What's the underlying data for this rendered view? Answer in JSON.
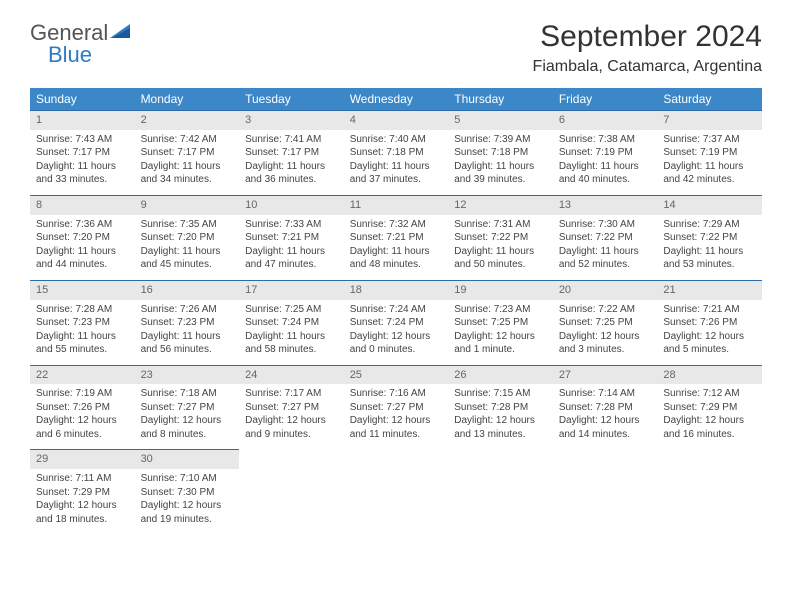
{
  "logo": {
    "word1": "General",
    "word2": "Blue"
  },
  "title": "September 2024",
  "location": "Fiambala, Catamarca, Argentina",
  "colors": {
    "header_bg": "#3b87c8",
    "header_text": "#ffffff",
    "daynum_bg": "#e8e8e8",
    "daynum_text": "#666666",
    "cell_border": "#2c6aa8",
    "body_text": "#444444",
    "logo_blue": "#2c7bc4"
  },
  "weekdays": [
    "Sunday",
    "Monday",
    "Tuesday",
    "Wednesday",
    "Thursday",
    "Friday",
    "Saturday"
  ],
  "weeks": [
    [
      {
        "d": "1",
        "sr": "Sunrise: 7:43 AM",
        "ss": "Sunset: 7:17 PM",
        "dl1": "Daylight: 11 hours",
        "dl2": "and 33 minutes."
      },
      {
        "d": "2",
        "sr": "Sunrise: 7:42 AM",
        "ss": "Sunset: 7:17 PM",
        "dl1": "Daylight: 11 hours",
        "dl2": "and 34 minutes."
      },
      {
        "d": "3",
        "sr": "Sunrise: 7:41 AM",
        "ss": "Sunset: 7:17 PM",
        "dl1": "Daylight: 11 hours",
        "dl2": "and 36 minutes."
      },
      {
        "d": "4",
        "sr": "Sunrise: 7:40 AM",
        "ss": "Sunset: 7:18 PM",
        "dl1": "Daylight: 11 hours",
        "dl2": "and 37 minutes."
      },
      {
        "d": "5",
        "sr": "Sunrise: 7:39 AM",
        "ss": "Sunset: 7:18 PM",
        "dl1": "Daylight: 11 hours",
        "dl2": "and 39 minutes."
      },
      {
        "d": "6",
        "sr": "Sunrise: 7:38 AM",
        "ss": "Sunset: 7:19 PM",
        "dl1": "Daylight: 11 hours",
        "dl2": "and 40 minutes."
      },
      {
        "d": "7",
        "sr": "Sunrise: 7:37 AM",
        "ss": "Sunset: 7:19 PM",
        "dl1": "Daylight: 11 hours",
        "dl2": "and 42 minutes."
      }
    ],
    [
      {
        "d": "8",
        "sr": "Sunrise: 7:36 AM",
        "ss": "Sunset: 7:20 PM",
        "dl1": "Daylight: 11 hours",
        "dl2": "and 44 minutes."
      },
      {
        "d": "9",
        "sr": "Sunrise: 7:35 AM",
        "ss": "Sunset: 7:20 PM",
        "dl1": "Daylight: 11 hours",
        "dl2": "and 45 minutes."
      },
      {
        "d": "10",
        "sr": "Sunrise: 7:33 AM",
        "ss": "Sunset: 7:21 PM",
        "dl1": "Daylight: 11 hours",
        "dl2": "and 47 minutes."
      },
      {
        "d": "11",
        "sr": "Sunrise: 7:32 AM",
        "ss": "Sunset: 7:21 PM",
        "dl1": "Daylight: 11 hours",
        "dl2": "and 48 minutes."
      },
      {
        "d": "12",
        "sr": "Sunrise: 7:31 AM",
        "ss": "Sunset: 7:22 PM",
        "dl1": "Daylight: 11 hours",
        "dl2": "and 50 minutes."
      },
      {
        "d": "13",
        "sr": "Sunrise: 7:30 AM",
        "ss": "Sunset: 7:22 PM",
        "dl1": "Daylight: 11 hours",
        "dl2": "and 52 minutes."
      },
      {
        "d": "14",
        "sr": "Sunrise: 7:29 AM",
        "ss": "Sunset: 7:22 PM",
        "dl1": "Daylight: 11 hours",
        "dl2": "and 53 minutes."
      }
    ],
    [
      {
        "d": "15",
        "sr": "Sunrise: 7:28 AM",
        "ss": "Sunset: 7:23 PM",
        "dl1": "Daylight: 11 hours",
        "dl2": "and 55 minutes."
      },
      {
        "d": "16",
        "sr": "Sunrise: 7:26 AM",
        "ss": "Sunset: 7:23 PM",
        "dl1": "Daylight: 11 hours",
        "dl2": "and 56 minutes."
      },
      {
        "d": "17",
        "sr": "Sunrise: 7:25 AM",
        "ss": "Sunset: 7:24 PM",
        "dl1": "Daylight: 11 hours",
        "dl2": "and 58 minutes."
      },
      {
        "d": "18",
        "sr": "Sunrise: 7:24 AM",
        "ss": "Sunset: 7:24 PM",
        "dl1": "Daylight: 12 hours",
        "dl2": "and 0 minutes."
      },
      {
        "d": "19",
        "sr": "Sunrise: 7:23 AM",
        "ss": "Sunset: 7:25 PM",
        "dl1": "Daylight: 12 hours",
        "dl2": "and 1 minute."
      },
      {
        "d": "20",
        "sr": "Sunrise: 7:22 AM",
        "ss": "Sunset: 7:25 PM",
        "dl1": "Daylight: 12 hours",
        "dl2": "and 3 minutes."
      },
      {
        "d": "21",
        "sr": "Sunrise: 7:21 AM",
        "ss": "Sunset: 7:26 PM",
        "dl1": "Daylight: 12 hours",
        "dl2": "and 5 minutes."
      }
    ],
    [
      {
        "d": "22",
        "sr": "Sunrise: 7:19 AM",
        "ss": "Sunset: 7:26 PM",
        "dl1": "Daylight: 12 hours",
        "dl2": "and 6 minutes."
      },
      {
        "d": "23",
        "sr": "Sunrise: 7:18 AM",
        "ss": "Sunset: 7:27 PM",
        "dl1": "Daylight: 12 hours",
        "dl2": "and 8 minutes."
      },
      {
        "d": "24",
        "sr": "Sunrise: 7:17 AM",
        "ss": "Sunset: 7:27 PM",
        "dl1": "Daylight: 12 hours",
        "dl2": "and 9 minutes."
      },
      {
        "d": "25",
        "sr": "Sunrise: 7:16 AM",
        "ss": "Sunset: 7:27 PM",
        "dl1": "Daylight: 12 hours",
        "dl2": "and 11 minutes."
      },
      {
        "d": "26",
        "sr": "Sunrise: 7:15 AM",
        "ss": "Sunset: 7:28 PM",
        "dl1": "Daylight: 12 hours",
        "dl2": "and 13 minutes."
      },
      {
        "d": "27",
        "sr": "Sunrise: 7:14 AM",
        "ss": "Sunset: 7:28 PM",
        "dl1": "Daylight: 12 hours",
        "dl2": "and 14 minutes."
      },
      {
        "d": "28",
        "sr": "Sunrise: 7:12 AM",
        "ss": "Sunset: 7:29 PM",
        "dl1": "Daylight: 12 hours",
        "dl2": "and 16 minutes."
      }
    ],
    [
      {
        "d": "29",
        "sr": "Sunrise: 7:11 AM",
        "ss": "Sunset: 7:29 PM",
        "dl1": "Daylight: 12 hours",
        "dl2": "and 18 minutes."
      },
      {
        "d": "30",
        "sr": "Sunrise: 7:10 AM",
        "ss": "Sunset: 7:30 PM",
        "dl1": "Daylight: 12 hours",
        "dl2": "and 19 minutes."
      },
      null,
      null,
      null,
      null,
      null
    ]
  ]
}
